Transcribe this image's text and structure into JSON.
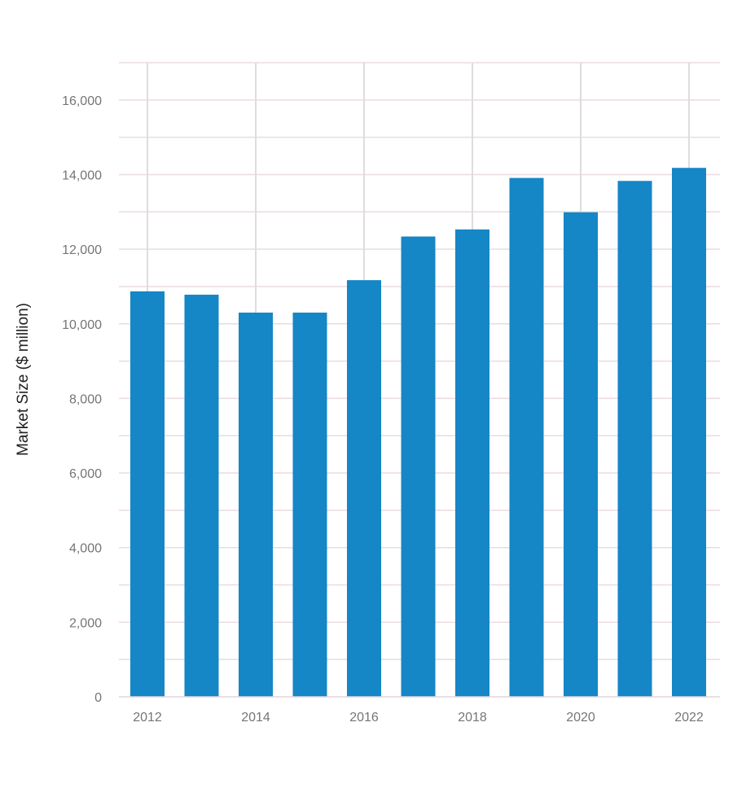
{
  "chart_data": {
    "type": "bar",
    "categories": [
      "2012",
      "2013",
      "2014",
      "2015",
      "2016",
      "2017",
      "2018",
      "2019",
      "2020",
      "2021",
      "2022"
    ],
    "values": [
      10870,
      10780,
      10300,
      10300,
      11170,
      12340,
      12530,
      13910,
      12990,
      13830,
      14180
    ],
    "ylabel": "Market Size ($ million)",
    "xlabel": "",
    "ylim": [
      0,
      17000
    ],
    "yticks": [
      0,
      2000,
      4000,
      6000,
      8000,
      10000,
      12000,
      14000,
      16000
    ],
    "ytick_labels": [
      "0",
      "2,000",
      "4,000",
      "6,000",
      "8,000",
      "10,000",
      "12,000",
      "14,000",
      "16,000"
    ],
    "xtick_labels": [
      "2012",
      "2014",
      "2016",
      "2018",
      "2020",
      "2022"
    ],
    "grid": true,
    "colors": {
      "bar": "#1586c6",
      "grid_h": "#eadbe0",
      "grid_v": "#dddddd",
      "tick_text": "#757575"
    }
  }
}
